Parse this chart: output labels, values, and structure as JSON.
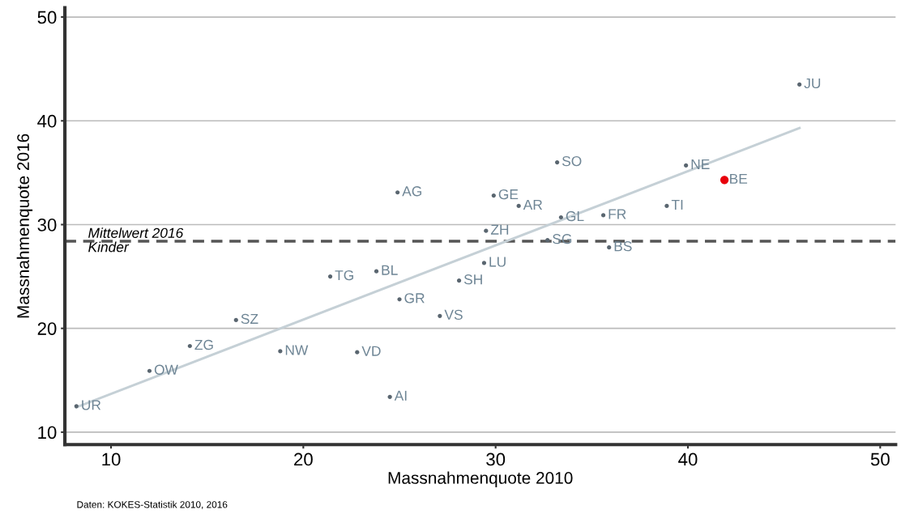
{
  "chart_data": {
    "type": "scatter",
    "xlabel": "Massnahmenquote 2010",
    "ylabel": "Massnahmenquote 2016",
    "xlim": [
      7.6,
      50.8
    ],
    "ylim": [
      8.8,
      50.9
    ],
    "xticks": [
      10,
      20,
      30,
      40,
      50
    ],
    "yticks": [
      10,
      20,
      30,
      40,
      50
    ],
    "grid": "y",
    "series": [
      {
        "marker": "circle",
        "color": "#5a6670",
        "x": [
          45.8,
          33.2,
          39.9,
          41.9,
          24.9,
          29.9,
          31.2,
          38.9,
          33.4,
          35.6,
          29.5,
          32.7,
          35.9,
          29.4,
          23.8,
          21.4,
          28.1,
          25.0,
          27.1,
          16.5,
          14.1,
          18.8,
          22.8,
          12.0,
          24.5,
          8.2
        ],
        "values": [
          43.5,
          36.0,
          35.7,
          34.3,
          33.1,
          32.8,
          31.8,
          31.8,
          30.7,
          30.9,
          29.4,
          28.5,
          27.8,
          26.3,
          25.5,
          25.0,
          24.6,
          22.8,
          21.2,
          20.8,
          18.3,
          17.8,
          17.7,
          15.9,
          13.4,
          12.5
        ],
        "colors": [
          "#5a6670",
          "#5a6670",
          "#5a6670",
          "#e8000b",
          "#5a6670",
          "#5a6670",
          "#5a6670",
          "#5a6670",
          "#5a6670",
          "#5a6670",
          "#5a6670",
          "#5a6670",
          "#5a6670",
          "#5a6670",
          "#5a6670",
          "#5a6670",
          "#5a6670",
          "#5a6670",
          "#5a6670",
          "#5a6670",
          "#5a6670",
          "#5a6670",
          "#5a6670",
          "#5a6670",
          "#5a6670",
          "#5a6670"
        ]
      },
      {
        "type": "line",
        "color": "#c5d0d6",
        "x": [
          8.2,
          45.8
        ],
        "values": [
          12.4,
          39.3
        ]
      }
    ],
    "ref_lines": [
      {
        "axis": "y",
        "value": 28.4,
        "label": "Mittelwert 2016\nKinder",
        "color": "#555555",
        "line_style": "dashed"
      }
    ],
    "annotations": [
      {
        "text": "JU",
        "x": 45.8,
        "y": 43.5
      },
      {
        "text": "SO",
        "x": 33.2,
        "y": 36.0
      },
      {
        "text": "NE",
        "x": 39.9,
        "y": 35.7
      },
      {
        "text": "BE",
        "x": 41.9,
        "y": 34.3
      },
      {
        "text": "AG",
        "x": 24.9,
        "y": 33.1
      },
      {
        "text": "GE",
        "x": 29.9,
        "y": 32.8
      },
      {
        "text": "AR",
        "x": 31.2,
        "y": 31.8
      },
      {
        "text": "TI",
        "x": 38.9,
        "y": 31.8
      },
      {
        "text": "GL",
        "x": 33.4,
        "y": 30.7
      },
      {
        "text": "FR",
        "x": 35.6,
        "y": 30.9
      },
      {
        "text": "ZH",
        "x": 29.5,
        "y": 29.4
      },
      {
        "text": "SG",
        "x": 32.7,
        "y": 28.5
      },
      {
        "text": "BS",
        "x": 35.9,
        "y": 27.8
      },
      {
        "text": "LU",
        "x": 29.4,
        "y": 26.3
      },
      {
        "text": "BL",
        "x": 23.8,
        "y": 25.5
      },
      {
        "text": "TG",
        "x": 21.4,
        "y": 25.0
      },
      {
        "text": "SH",
        "x": 28.1,
        "y": 24.6
      },
      {
        "text": "GR",
        "x": 25.0,
        "y": 22.8
      },
      {
        "text": "VS",
        "x": 27.1,
        "y": 21.2
      },
      {
        "text": "SZ",
        "x": 16.5,
        "y": 20.8
      },
      {
        "text": "ZG",
        "x": 14.1,
        "y": 18.3
      },
      {
        "text": "NW",
        "x": 18.8,
        "y": 17.8
      },
      {
        "text": "VD",
        "x": 22.8,
        "y": 17.7
      },
      {
        "text": "OW",
        "x": 12.0,
        "y": 15.9
      },
      {
        "text": "AI",
        "x": 24.5,
        "y": 13.4
      },
      {
        "text": "UR",
        "x": 8.2,
        "y": 12.5
      },
      "Daten: KOKES-Statistik 2010, 2016"
    ]
  }
}
